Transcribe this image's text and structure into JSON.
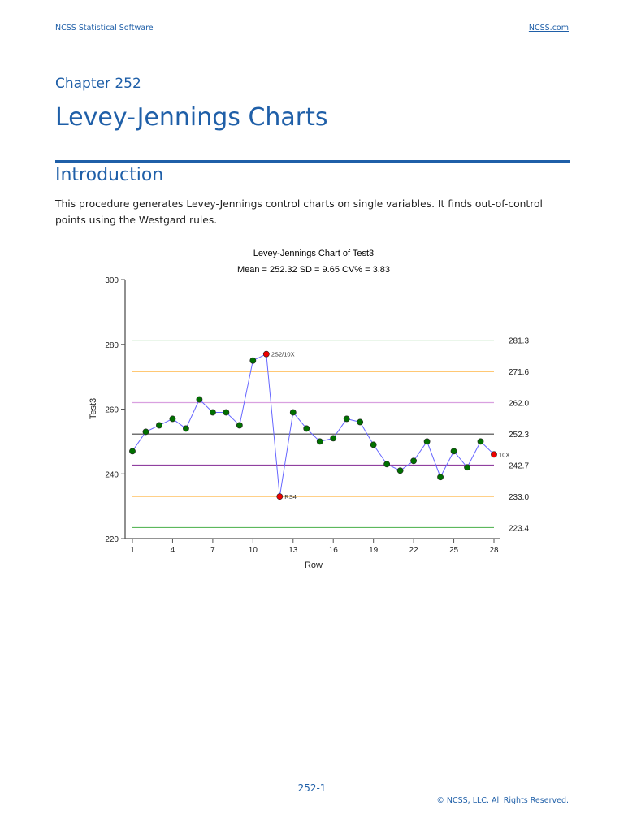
{
  "header": {
    "left": "NCSS Statistical Software",
    "right": "NCSS.com"
  },
  "chapter": "Chapter 252",
  "title": "Levey-Jennings Charts",
  "section": "Introduction",
  "intro": "This procedure generates Levey-Jennings control charts on single variables. It finds out-of-control points using the Westgard rules.",
  "chart_data": {
    "type": "line",
    "title": "Levey-Jennings Chart of Test3",
    "subtitle": "Mean = 252.32  SD = 9.65  CV% = 3.83",
    "xlabel": "Row",
    "ylabel": "Test3",
    "xlim": [
      1,
      28
    ],
    "ylim": [
      220,
      300
    ],
    "xticks": [
      1,
      4,
      7,
      10,
      13,
      16,
      19,
      22,
      25,
      28
    ],
    "yticks": [
      220,
      240,
      260,
      280,
      300
    ],
    "x": [
      1,
      2,
      3,
      4,
      5,
      6,
      7,
      8,
      9,
      10,
      11,
      12,
      13,
      14,
      15,
      16,
      17,
      18,
      19,
      20,
      21,
      22,
      23,
      24,
      25,
      26,
      27,
      28
    ],
    "values": [
      247,
      253,
      255,
      257,
      254,
      263,
      259,
      259,
      255,
      275,
      277,
      233,
      259,
      254,
      250,
      251,
      257,
      256,
      249,
      243,
      241,
      244,
      250,
      239,
      247,
      242,
      250,
      246
    ],
    "line_color": "#6666ff",
    "point_color": "#007000",
    "flag_color": "#ee0000",
    "flags": [
      {
        "x": 11,
        "label": "2S2/10X"
      },
      {
        "x": 12,
        "label": "RS4"
      },
      {
        "x": 28,
        "label": "10X"
      }
    ],
    "limits": [
      {
        "value": 281.3,
        "label": "281.3",
        "color": "#5cb85c"
      },
      {
        "value": 271.6,
        "label": "271.6",
        "color": "#ffc060"
      },
      {
        "value": 262.0,
        "label": "262.0",
        "color": "#d9a0e0"
      },
      {
        "value": 252.3,
        "label": "252.3",
        "color": "#444444"
      },
      {
        "value": 242.7,
        "label": "242.7",
        "color": "#9040a0"
      },
      {
        "value": 233.0,
        "label": "233.0",
        "color": "#ffc060"
      },
      {
        "value": 223.4,
        "label": "223.4",
        "color": "#5cb85c"
      }
    ],
    "grid": false
  },
  "footer": {
    "page": "252-1",
    "copyright": "© NCSS, LLC. All Rights Reserved."
  }
}
